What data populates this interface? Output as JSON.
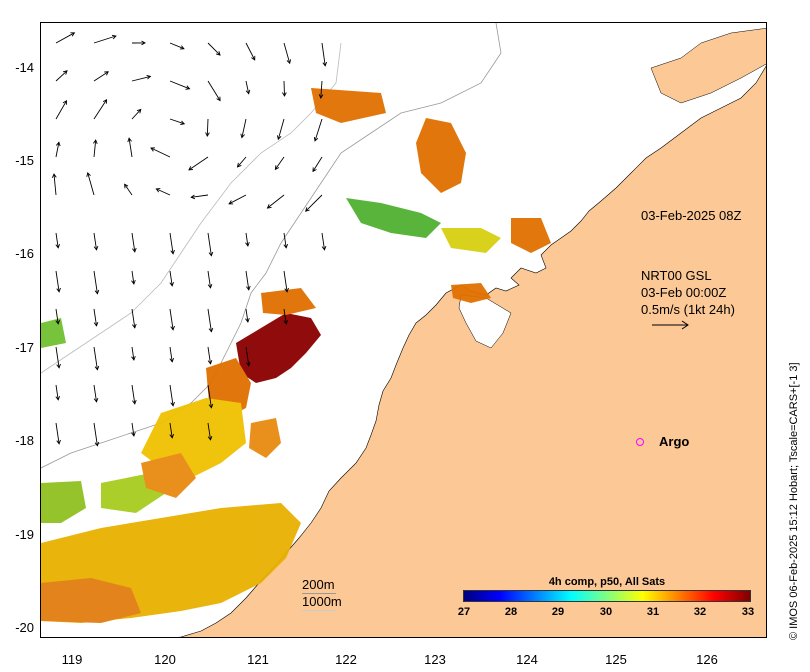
{
  "axes": {
    "y_ticks": [
      "-14",
      "-15",
      "-16",
      "-17",
      "-18",
      "-19",
      "-20"
    ],
    "x_ticks": [
      "119",
      "120",
      "121",
      "122",
      "123",
      "124",
      "125",
      "126"
    ],
    "lon_range": [
      118.6,
      126.75
    ],
    "lat_range": [
      -13.5,
      -20.05
    ]
  },
  "annotations": {
    "timestamp": "03-Feb-2025 08Z",
    "gsl_title": "NRT00 GSL",
    "gsl_time": "03-Feb 00:00Z",
    "scale_label": "0.5m/s (1kt 24h)",
    "argo_label": "Argo",
    "depth_200": "200m",
    "depth_1000": "1000m"
  },
  "colorbar": {
    "title": "4h comp, p50, All Sats",
    "ticks": [
      "27",
      "28",
      "29",
      "30",
      "31",
      "32",
      "33"
    ]
  },
  "credit": "© IMOS 06-Feb-2025 15:12 Hobart; Tscale=CARS+[-1 3]",
  "colors": {
    "land": "#fbc896",
    "sst_hot": "#8b0000",
    "sst_warm": "#e07000",
    "sst_mid": "#f0c000",
    "sst_cool": "#60c020",
    "argo": "#ff00ff"
  }
}
